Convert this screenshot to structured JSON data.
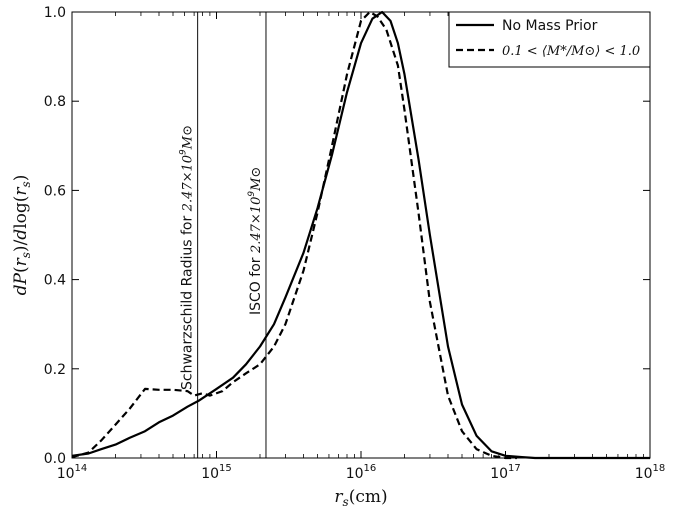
{
  "chart_data": {
    "type": "line",
    "xscale": "log",
    "xlim": [
      100000000000000.0,
      1e+18
    ],
    "ylim": [
      0.0,
      1.0
    ],
    "xlabel": "r_s(cm)",
    "ylabel": "dP(r_s)/dlog(r_s)",
    "x_ticks": [
      {
        "value": 100000000000000.0,
        "base": "10",
        "exp": "14"
      },
      {
        "value": 1000000000000000.0,
        "base": "10",
        "exp": "15"
      },
      {
        "value": 1e+16,
        "base": "10",
        "exp": "16"
      },
      {
        "value": 1e+17,
        "base": "10",
        "exp": "17"
      },
      {
        "value": 1e+18,
        "base": "10",
        "exp": "18"
      }
    ],
    "y_ticks": [
      "0.0",
      "0.2",
      "0.4",
      "0.6",
      "0.8",
      "1.0"
    ],
    "legend_position": "top-right",
    "series": [
      {
        "name": "No Mass Prior",
        "style": "solid",
        "color": "#000000",
        "x": [
          100000000000000.0,
          130000000000000.0,
          160000000000000.0,
          200000000000000.0,
          250000000000000.0,
          320000000000000.0,
          400000000000000.0,
          500000000000000.0,
          630000000000000.0,
          750000000000000.0,
          900000000000000.0,
          1000000000000000.0,
          1300000000000000.0,
          1600000000000000.0,
          2000000000000000.0,
          2500000000000000.0,
          3000000000000000.0,
          4000000000000000.0,
          5000000000000000.0,
          6300000000000000.0,
          8000000000000000.0,
          1e+16,
          1.2e+16,
          1.4e+16,
          1.6e+16,
          1.8e+16,
          2e+16,
          2.5e+16,
          3e+16,
          4e+16,
          5e+16,
          6.3e+16,
          8e+16,
          1e+17,
          1.3e+17,
          1.6e+17,
          2e+17,
          3e+17,
          1e+18
        ],
        "y": [
          0.005,
          0.01,
          0.02,
          0.03,
          0.045,
          0.06,
          0.08,
          0.095,
          0.115,
          0.128,
          0.145,
          0.155,
          0.18,
          0.21,
          0.25,
          0.3,
          0.36,
          0.46,
          0.56,
          0.68,
          0.82,
          0.93,
          0.985,
          1.0,
          0.98,
          0.93,
          0.86,
          0.67,
          0.5,
          0.25,
          0.12,
          0.05,
          0.015,
          0.005,
          0.002,
          0.0,
          0.0,
          0.0,
          0.0
        ]
      },
      {
        "name": "0.1 < ⟨M*/M⊙⟩ < 1.0",
        "style": "dashed",
        "color": "#000000",
        "x": [
          100000000000000.0,
          130000000000000.0,
          160000000000000.0,
          200000000000000.0,
          250000000000000.0,
          320000000000000.0,
          400000000000000.0,
          500000000000000.0,
          630000000000000.0,
          700000000000000.0,
          800000000000000.0,
          900000000000000.0,
          1100000000000000.0,
          1300000000000000.0,
          1600000000000000.0,
          2000000000000000.0,
          2500000000000000.0,
          3000000000000000.0,
          4000000000000000.0,
          5000000000000000.0,
          6300000000000000.0,
          8000000000000000.0,
          1e+16,
          1.15e+16,
          1.3e+16,
          1.5e+16,
          1.8e+16,
          2e+16,
          2.5e+16,
          3e+16,
          4e+16,
          5e+16,
          6.3e+16,
          8e+16,
          1e+17,
          1.2e+17
        ],
        "y": [
          0.002,
          0.012,
          0.04,
          0.075,
          0.11,
          0.155,
          0.153,
          0.153,
          0.15,
          0.14,
          0.145,
          0.14,
          0.15,
          0.17,
          0.19,
          0.21,
          0.25,
          0.3,
          0.42,
          0.55,
          0.7,
          0.86,
          0.98,
          1.0,
          0.99,
          0.96,
          0.88,
          0.78,
          0.55,
          0.35,
          0.14,
          0.06,
          0.02,
          0.005,
          0.0,
          0.0
        ]
      }
    ],
    "vertical_lines": [
      {
        "x": 740000000000000.0,
        "label_text": "Schwarzschild Radius for ",
        "label_math_base": "2.47×10",
        "label_math_exp": "9",
        "label_math_unit": "M⊙"
      },
      {
        "x": 2200000000000000.0,
        "label_text": "ISCO for ",
        "label_math_base": "2.47×10",
        "label_math_exp": "9",
        "label_math_unit": "M⊙"
      }
    ],
    "legend": {
      "items": [
        {
          "label": "No Mass Prior",
          "style": "solid"
        },
        {
          "label": "0.1 < ⟨M*/M⊙⟩ < 1.0",
          "style": "dashed"
        }
      ]
    }
  }
}
